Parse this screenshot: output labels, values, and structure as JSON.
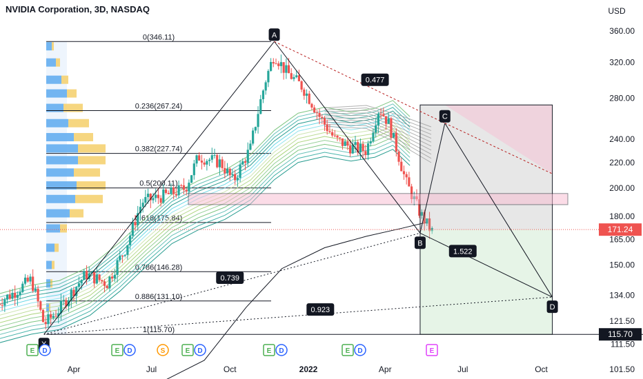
{
  "header": {
    "title": "NVIDIA Corporation, 3D, NASDAQ",
    "currency": "USD"
  },
  "chart_data": {
    "type": "candlestick",
    "ylim": [
      95,
      385
    ],
    "y_ticks": [
      101.5,
      111.5,
      121.5,
      134.0,
      150.0,
      165.0,
      180.0,
      200.0,
      220.0,
      240.0,
      280.0,
      320.0,
      360.0
    ],
    "x_ticks": [
      "Apr",
      "Jul",
      "Oct",
      "2022",
      "Apr",
      "Jul",
      "Oct"
    ],
    "price_labels": {
      "current": "171.24",
      "marker": "115.70"
    },
    "fib_levels": [
      {
        "label": "0(346.11)",
        "value": 346.11
      },
      {
        "label": "0.236(267.24)",
        "value": 267.24
      },
      {
        "label": "0.382(227.74)",
        "value": 227.74
      },
      {
        "label": "0.5(200.11)",
        "value": 200.11
      },
      {
        "label": "0.618(175.84)",
        "value": 175.84
      },
      {
        "label": "0.786(146.28)",
        "value": 146.28
      },
      {
        "label": "0.886(131.10)",
        "value": 131.1
      },
      {
        "label": "1(115.70)",
        "value": 115.7
      }
    ],
    "pattern_points": [
      {
        "name": "X",
        "date": "2021-02-25",
        "value": 115.7
      },
      {
        "name": "A",
        "date": "2021-11-22",
        "value": 346.11
      },
      {
        "name": "B",
        "date": "2022-05-12",
        "value": 169.0
      },
      {
        "name": "C",
        "date": "2022-06-10",
        "value": 255.0
      },
      {
        "name": "D",
        "date": "2022-10-14",
        "value": 133.0
      }
    ],
    "ratios": [
      "0.477",
      "1.522",
      "0.739",
      "0.923"
    ],
    "events": [
      "E",
      "D",
      "E",
      "D",
      "S",
      "E",
      "D",
      "E",
      "D",
      "E",
      "D",
      "E"
    ]
  },
  "colors": {
    "up": "#26a69a",
    "down": "#ef5350",
    "accent": "#2962ff"
  }
}
